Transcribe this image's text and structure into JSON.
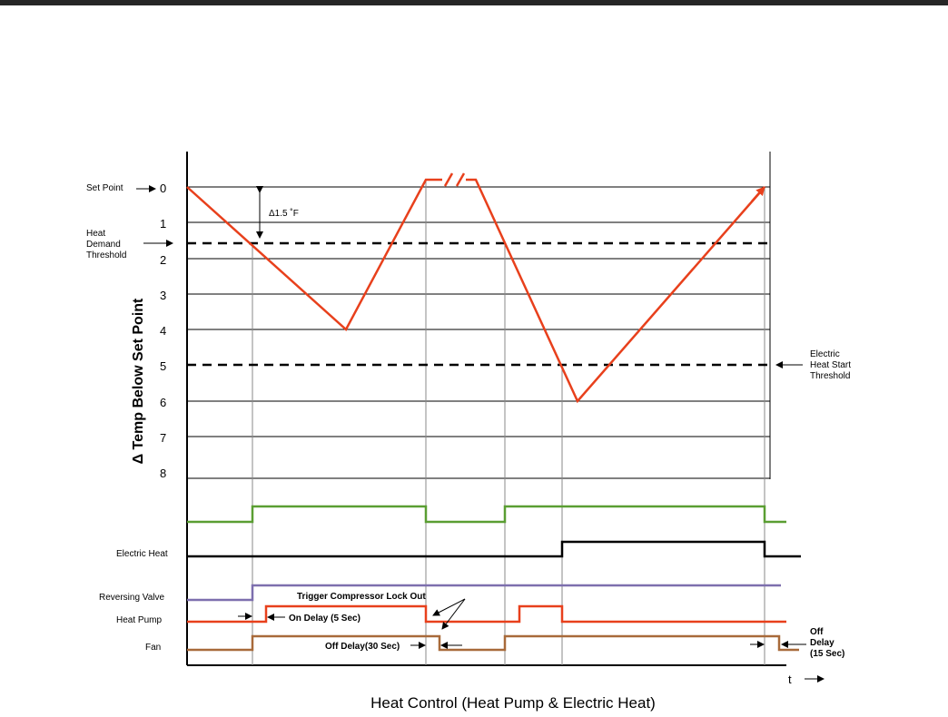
{
  "title": "Heat Control  (Heat Pump & Electric Heat)",
  "y_axis_label": "Δ Temp Below Set Point",
  "x_axis_label": "t",
  "y_ticks": [
    "0",
    "1",
    "2",
    "3",
    "4",
    "5",
    "6",
    "7",
    "8"
  ],
  "thresholds": {
    "set_point": "Set Point",
    "heat_demand": [
      "Heat",
      "Demand",
      "Threshold"
    ],
    "electric_heat_start": [
      "Electric",
      "Heat  Start",
      "Threshold"
    ]
  },
  "delta_label": "Δ1.5 ˚F",
  "signals": {
    "electric_heat": "Electric Heat",
    "reversing_valve": "Reversing Valve",
    "heat_pump": "Heat Pump",
    "fan": "Fan"
  },
  "annotations": {
    "trigger_lockout": "Trigger Compressor Lock Out",
    "on_delay": "On Delay (5 Sec)",
    "off_delay_30": "Off Delay(30 Sec)",
    "off_delay_15": [
      "Off",
      "Delay",
      "(15 Sec)"
    ]
  },
  "colors": {
    "temperature": "#e8401c",
    "thermostat": "#5a9e32",
    "electric_heat": "#000000",
    "reversing_valve": "#7d6fae",
    "heat_pump": "#e8401c",
    "fan": "#a86a3a"
  }
}
